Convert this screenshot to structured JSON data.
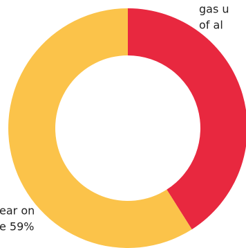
{
  "chart_data": {
    "type": "donut",
    "values": [
      41,
      59
    ],
    "colors": [
      "#e8283f",
      "#fbc34a"
    ],
    "annotations": [
      "gas u",
      "of al",
      "ear on",
      "e 59%"
    ]
  }
}
